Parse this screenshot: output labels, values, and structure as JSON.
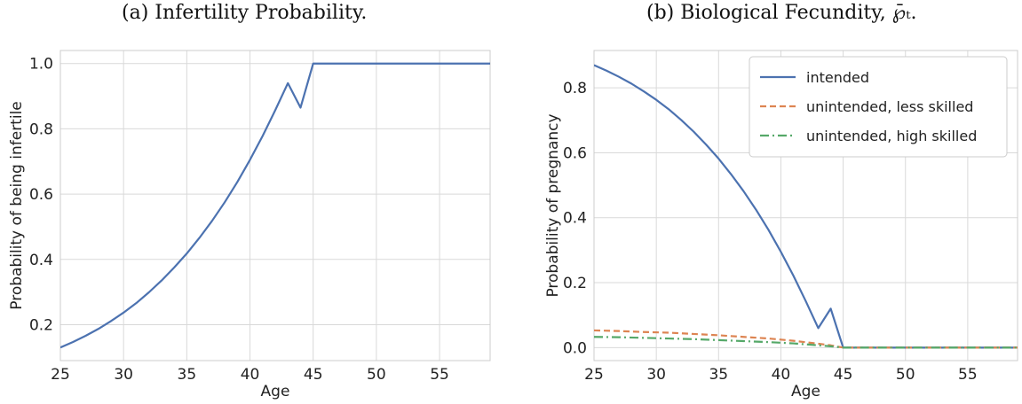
{
  "chart_data": [
    {
      "id": "a",
      "type": "line",
      "title": "(a) Infertility Probability.",
      "xlabel": "Age",
      "ylabel": "Probability of being infertile",
      "xlim": [
        25,
        59
      ],
      "ylim": [
        0.09,
        1.04
      ],
      "xticks": [
        25,
        30,
        35,
        40,
        45,
        50,
        55
      ],
      "yticks": [
        0.2,
        0.4,
        0.6,
        0.8,
        1.0
      ],
      "ytick_labels": [
        "0.2",
        "0.4",
        "0.6",
        "0.8",
        "1.0"
      ],
      "grid": true,
      "legend": "none",
      "series": [
        {
          "color": "#4c72b0",
          "dash": "solid",
          "x": [
            25,
            26,
            27,
            28,
            29,
            30,
            31,
            32,
            33,
            34,
            35,
            36,
            37,
            38,
            39,
            40,
            41,
            42,
            43,
            44,
            45,
            46,
            47,
            48,
            49,
            50,
            51,
            52,
            53,
            54,
            55,
            56,
            57,
            58,
            59
          ],
          "y": [
            0.13,
            0.147,
            0.166,
            0.187,
            0.211,
            0.237,
            0.266,
            0.299,
            0.335,
            0.375,
            0.418,
            0.466,
            0.518,
            0.575,
            0.637,
            0.705,
            0.778,
            0.857,
            0.94,
            0.865,
            1.0,
            1.0,
            1.0,
            1.0,
            1.0,
            1.0,
            1.0,
            1.0,
            1.0,
            1.0,
            1.0,
            1.0,
            1.0,
            1.0,
            1.0
          ]
        }
      ]
    },
    {
      "id": "b",
      "type": "line",
      "title": "(b) Biological Fecundity, ℘̄ₜ.",
      "xlabel": "Age",
      "ylabel": "Probability of pregnancy",
      "xlim": [
        25,
        59
      ],
      "ylim": [
        -0.04,
        0.915
      ],
      "xticks": [
        25,
        30,
        35,
        40,
        45,
        50,
        55
      ],
      "yticks": [
        0.0,
        0.2,
        0.4,
        0.6,
        0.8
      ],
      "ytick_labels": [
        "0.0",
        "0.2",
        "0.4",
        "0.6",
        "0.8"
      ],
      "grid": true,
      "legend": "top-right",
      "series": [
        {
          "name": "intended",
          "color": "#4c72b0",
          "dash": "solid",
          "x": [
            25,
            26,
            27,
            28,
            29,
            30,
            31,
            32,
            33,
            34,
            35,
            36,
            37,
            38,
            39,
            40,
            41,
            42,
            43,
            44,
            45,
            46,
            47,
            48,
            49,
            50,
            51,
            52,
            53,
            54,
            55,
            56,
            57,
            58,
            59
          ],
          "y": [
            0.87,
            0.853,
            0.834,
            0.813,
            0.789,
            0.763,
            0.734,
            0.701,
            0.665,
            0.625,
            0.582,
            0.534,
            0.482,
            0.425,
            0.363,
            0.295,
            0.222,
            0.143,
            0.06,
            0.12,
            0.0,
            0.0,
            0.0,
            0.0,
            0.0,
            0.0,
            0.0,
            0.0,
            0.0,
            0.0,
            0.0,
            0.0,
            0.0,
            0.0,
            0.0
          ]
        },
        {
          "name": "unintended, less skilled",
          "color": "#dd8452",
          "dash": "dashed",
          "x": [
            25,
            27,
            29,
            31,
            33,
            35,
            37,
            39,
            41,
            43,
            44,
            45,
            47,
            49,
            51,
            53,
            55,
            57,
            59
          ],
          "y": [
            0.053,
            0.051,
            0.048,
            0.046,
            0.042,
            0.038,
            0.033,
            0.028,
            0.021,
            0.012,
            0.007,
            0.0,
            0.0,
            0.0,
            0.0,
            0.0,
            0.0,
            0.0,
            0.0
          ]
        },
        {
          "name": "unintended, high skilled",
          "color": "#55a868",
          "dash": "dashdot",
          "x": [
            25,
            27,
            29,
            31,
            33,
            35,
            37,
            39,
            41,
            43,
            44,
            45,
            47,
            49,
            51,
            53,
            55,
            57,
            59
          ],
          "y": [
            0.033,
            0.032,
            0.03,
            0.028,
            0.026,
            0.023,
            0.02,
            0.017,
            0.013,
            0.007,
            0.004,
            0.0,
            0.0,
            0.0,
            0.0,
            0.0,
            0.0,
            0.0,
            0.0
          ]
        }
      ]
    }
  ]
}
